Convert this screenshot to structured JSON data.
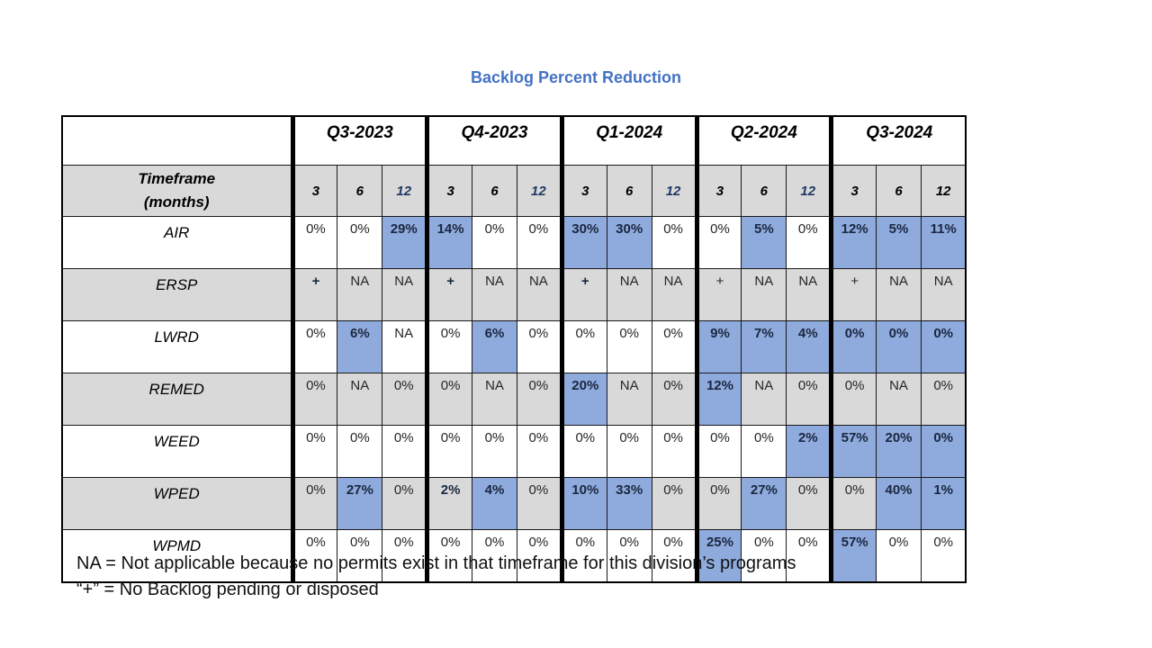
{
  "title": "Backlog Percent Reduction",
  "timeframe_header": {
    "line1": "Timeframe",
    "line2": "(months)"
  },
  "quarters": [
    {
      "label": "Q3-2023",
      "months": [
        {
          "v": "3",
          "navy": false
        },
        {
          "v": "6",
          "navy": false
        },
        {
          "v": "12",
          "navy": true
        }
      ]
    },
    {
      "label": "Q4-2023",
      "months": [
        {
          "v": "3",
          "navy": false
        },
        {
          "v": "6",
          "navy": false
        },
        {
          "v": "12",
          "navy": true
        }
      ]
    },
    {
      "label": "Q1-2024",
      "months": [
        {
          "v": "3",
          "navy": false
        },
        {
          "v": "6",
          "navy": false
        },
        {
          "v": "12",
          "navy": true
        }
      ]
    },
    {
      "label": "Q2-2024",
      "months": [
        {
          "v": "3",
          "navy": false
        },
        {
          "v": "6",
          "navy": false
        },
        {
          "v": "12",
          "navy": true
        }
      ]
    },
    {
      "label": "Q3-2024",
      "months": [
        {
          "v": "3",
          "navy": false
        },
        {
          "v": "6",
          "navy": false
        },
        {
          "v": "12",
          "navy": false
        }
      ]
    }
  ],
  "rows": [
    {
      "label": "AIR",
      "shaded": false,
      "cells": [
        {
          "v": "0%"
        },
        {
          "v": "0%"
        },
        {
          "v": "29%",
          "hl": true,
          "b": true
        },
        {
          "v": "14%",
          "hl": true,
          "b": true
        },
        {
          "v": "0%"
        },
        {
          "v": "0%"
        },
        {
          "v": "30%",
          "hl": true,
          "b": true
        },
        {
          "v": "30%",
          "hl": true,
          "b": true
        },
        {
          "v": "0%"
        },
        {
          "v": "0%"
        },
        {
          "v": "5%",
          "hl": true,
          "b": true
        },
        {
          "v": "0%"
        },
        {
          "v": "12%",
          "hl": true,
          "b": true
        },
        {
          "v": "5%",
          "hl": true,
          "b": true
        },
        {
          "v": "11%",
          "hl": true,
          "b": true
        }
      ]
    },
    {
      "label": "ERSP",
      "shaded": true,
      "cells": [
        {
          "v": "+",
          "b": true
        },
        {
          "v": "NA"
        },
        {
          "v": "NA"
        },
        {
          "v": "+",
          "b": true
        },
        {
          "v": "NA"
        },
        {
          "v": "NA"
        },
        {
          "v": "+",
          "b": true
        },
        {
          "v": "NA"
        },
        {
          "v": "NA"
        },
        {
          "v": "+"
        },
        {
          "v": "NA"
        },
        {
          "v": "NA"
        },
        {
          "v": "+"
        },
        {
          "v": "NA"
        },
        {
          "v": "NA"
        }
      ]
    },
    {
      "label": "LWRD",
      "shaded": false,
      "cells": [
        {
          "v": "0%"
        },
        {
          "v": "6%",
          "hl": true,
          "b": true
        },
        {
          "v": "NA"
        },
        {
          "v": "0%"
        },
        {
          "v": "6%",
          "hl": true,
          "b": true
        },
        {
          "v": "0%"
        },
        {
          "v": "0%"
        },
        {
          "v": "0%"
        },
        {
          "v": "0%"
        },
        {
          "v": "9%",
          "hl": true,
          "b": true
        },
        {
          "v": "7%",
          "hl": true,
          "b": true
        },
        {
          "v": "4%",
          "hl": true,
          "b": true
        },
        {
          "v": "0%",
          "hl": true,
          "b": true
        },
        {
          "v": "0%",
          "hl": true,
          "b": true
        },
        {
          "v": "0%",
          "hl": true,
          "b": true
        }
      ]
    },
    {
      "label": "REMED",
      "shaded": true,
      "cells": [
        {
          "v": "0%"
        },
        {
          "v": "NA"
        },
        {
          "v": "0%"
        },
        {
          "v": "0%"
        },
        {
          "v": "NA"
        },
        {
          "v": "0%"
        },
        {
          "v": "20%",
          "hl": true,
          "b": true
        },
        {
          "v": "NA"
        },
        {
          "v": "0%"
        },
        {
          "v": "12%",
          "hl": true,
          "b": true
        },
        {
          "v": "NA"
        },
        {
          "v": "0%"
        },
        {
          "v": "0%"
        },
        {
          "v": "NA"
        },
        {
          "v": "0%"
        }
      ]
    },
    {
      "label": "WEED",
      "shaded": false,
      "cells": [
        {
          "v": "0%"
        },
        {
          "v": "0%"
        },
        {
          "v": "0%"
        },
        {
          "v": "0%"
        },
        {
          "v": "0%"
        },
        {
          "v": "0%"
        },
        {
          "v": "0%"
        },
        {
          "v": "0%"
        },
        {
          "v": "0%"
        },
        {
          "v": "0%"
        },
        {
          "v": "0%"
        },
        {
          "v": "2%",
          "hl": true,
          "b": true
        },
        {
          "v": "57%",
          "hl": true,
          "b": true
        },
        {
          "v": "20%",
          "hl": true,
          "b": true
        },
        {
          "v": "0%",
          "hl": true,
          "b": true
        }
      ]
    },
    {
      "label": "WPED",
      "shaded": true,
      "cells": [
        {
          "v": "0%"
        },
        {
          "v": "27%",
          "hl": true,
          "b": true
        },
        {
          "v": "0%"
        },
        {
          "v": "2%",
          "b": true
        },
        {
          "v": "4%",
          "hl": true,
          "b": true
        },
        {
          "v": "0%"
        },
        {
          "v": "10%",
          "hl": true,
          "b": true
        },
        {
          "v": "33%",
          "hl": true,
          "b": true
        },
        {
          "v": "0%"
        },
        {
          "v": "0%"
        },
        {
          "v": "27%",
          "hl": true,
          "b": true
        },
        {
          "v": "0%"
        },
        {
          "v": "0%"
        },
        {
          "v": "40%",
          "hl": true,
          "b": true
        },
        {
          "v": "1%",
          "hl": true,
          "b": true
        }
      ]
    },
    {
      "label": "WPMD",
      "shaded": false,
      "cells": [
        {
          "v": "0%"
        },
        {
          "v": "0%"
        },
        {
          "v": "0%"
        },
        {
          "v": "0%"
        },
        {
          "v": "0%"
        },
        {
          "v": "0%"
        },
        {
          "v": "0%"
        },
        {
          "v": "0%"
        },
        {
          "v": "0%"
        },
        {
          "v": "25%",
          "hl": true,
          "b": true
        },
        {
          "v": "0%"
        },
        {
          "v": "0%"
        },
        {
          "v": "57%",
          "hl": true,
          "b": true
        },
        {
          "v": "0%"
        },
        {
          "v": "0%"
        }
      ]
    }
  ],
  "footnotes": [
    "NA = Not applicable because no permits exist in that timeframe for this division’s programs",
    "“+” = No Backlog pending or disposed"
  ],
  "colors": {
    "title_blue": "#4472c4",
    "highlight_blue": "#8faadc",
    "row_gray": "#d9d9d9",
    "navy_12": "#1f3864"
  }
}
